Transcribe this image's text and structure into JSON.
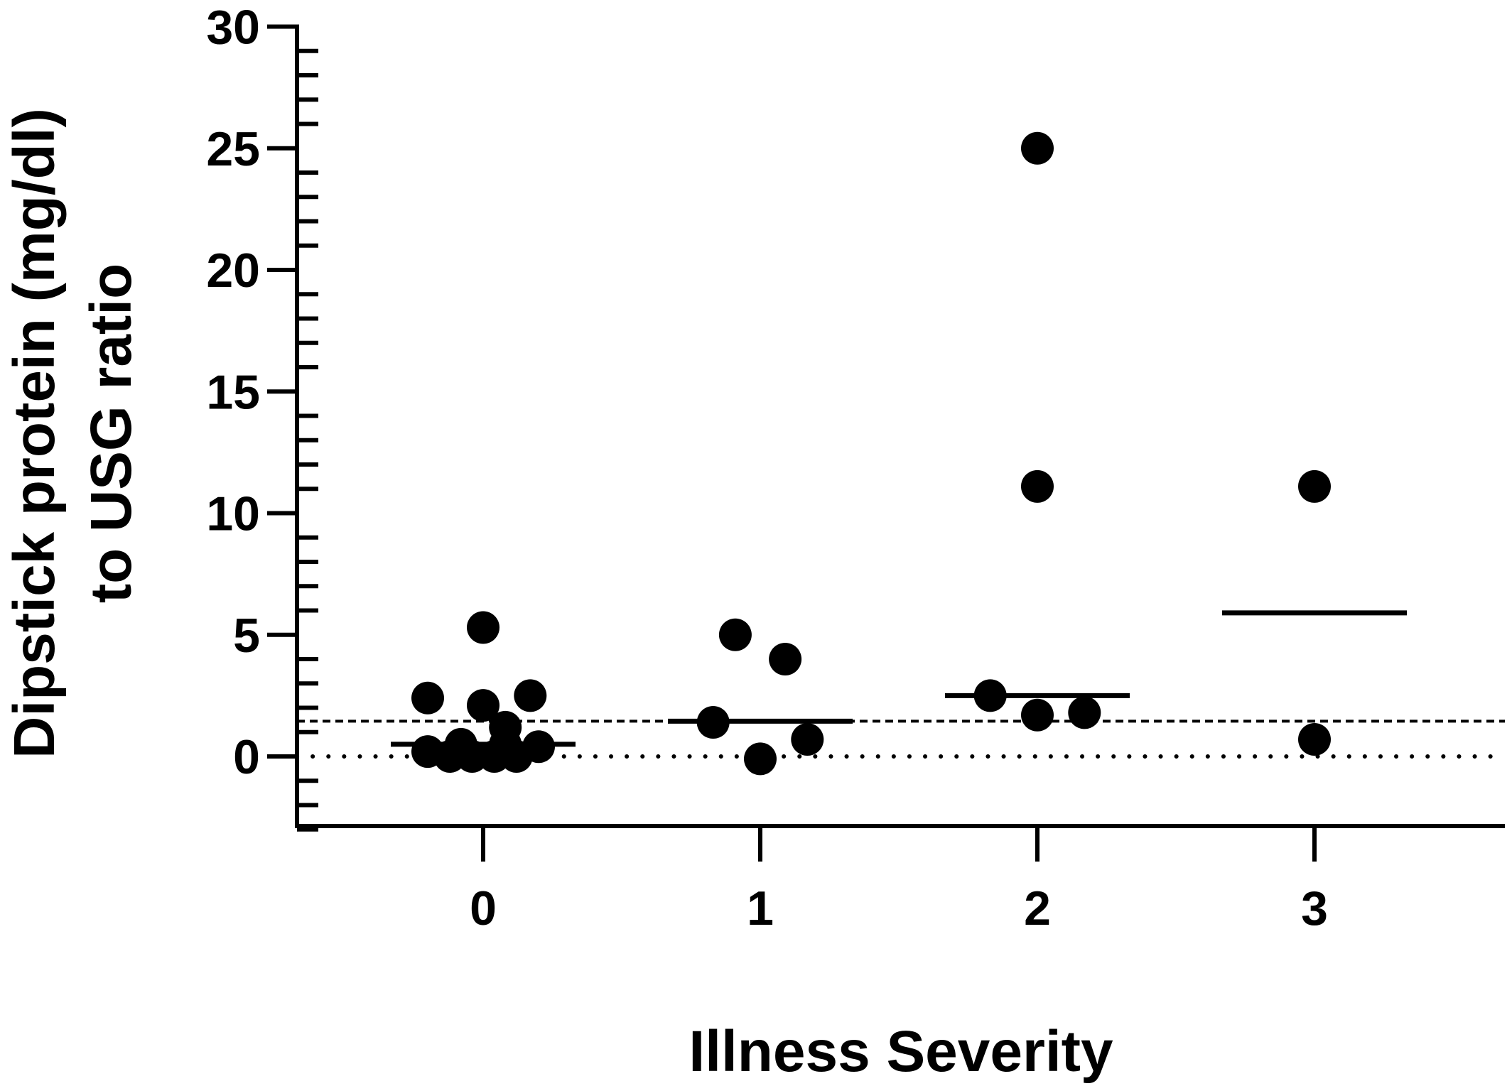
{
  "chart_data": {
    "type": "scatter",
    "xlabel": "Illness Severity",
    "ylabel_lines": [
      "Dipstick protein (mg/dl)",
      "to USG ratio"
    ],
    "categories": [
      "0",
      "1",
      "2",
      "3"
    ],
    "ylim": [
      -3,
      30
    ],
    "yticks": [
      0,
      5,
      10,
      15,
      20,
      25,
      30
    ],
    "ytick_labels": [
      "0",
      "5",
      "10",
      "15",
      "20",
      "25",
      "30"
    ],
    "grid": false,
    "legend": "none",
    "marker_color": "#000000",
    "groups": [
      {
        "category": "0",
        "median": 0.5,
        "points": [
          {
            "offset": -0.2,
            "y": 2.4
          },
          {
            "offset": 0.0,
            "y": 5.3
          },
          {
            "offset": 0.0,
            "y": 2.1
          },
          {
            "offset": 0.17,
            "y": 2.5
          },
          {
            "offset": 0.08,
            "y": 1.2
          },
          {
            "offset": -0.2,
            "y": 0.2
          },
          {
            "offset": -0.12,
            "y": 0.0
          },
          {
            "offset": -0.08,
            "y": 0.5
          },
          {
            "offset": -0.04,
            "y": 0.0
          },
          {
            "offset": 0.04,
            "y": 0.0
          },
          {
            "offset": 0.08,
            "y": 0.5
          },
          {
            "offset": 0.12,
            "y": 0.0
          },
          {
            "offset": 0.2,
            "y": 0.4
          }
        ]
      },
      {
        "category": "1",
        "median": 1.45,
        "points": [
          {
            "offset": -0.09,
            "y": 5.0
          },
          {
            "offset": 0.09,
            "y": 4.0
          },
          {
            "offset": -0.17,
            "y": 1.4
          },
          {
            "offset": 0.17,
            "y": 0.7
          },
          {
            "offset": 0.0,
            "y": -0.1
          }
        ]
      },
      {
        "category": "2",
        "median": 2.5,
        "points": [
          {
            "offset": 0.0,
            "y": 25.0
          },
          {
            "offset": 0.0,
            "y": 11.1
          },
          {
            "offset": -0.17,
            "y": 2.5
          },
          {
            "offset": 0.0,
            "y": 1.7
          },
          {
            "offset": 0.17,
            "y": 1.8
          }
        ]
      },
      {
        "category": "3",
        "median": 5.9,
        "points": [
          {
            "offset": 0.0,
            "y": 11.1
          },
          {
            "offset": 0.0,
            "y": 0.7
          }
        ]
      }
    ],
    "reference_lines": [
      {
        "y": 1.45,
        "style": "dashed"
      },
      {
        "y": 0.0,
        "style": "dotted"
      }
    ]
  }
}
